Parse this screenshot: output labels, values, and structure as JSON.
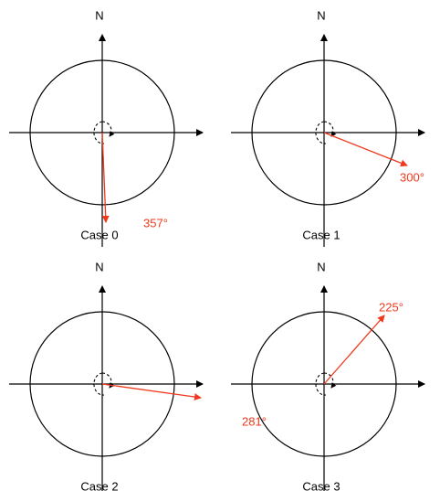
{
  "panels": [
    {
      "north": "N",
      "angle_label": "357°",
      "caption": "Case 0"
    },
    {
      "north": "N",
      "angle_label": "300°",
      "caption": "Case 1"
    },
    {
      "north": "N",
      "angle_label": "281°",
      "caption": "Case 2"
    },
    {
      "north": "N",
      "angle_label": "225°",
      "caption": "Case 3"
    }
  ]
}
